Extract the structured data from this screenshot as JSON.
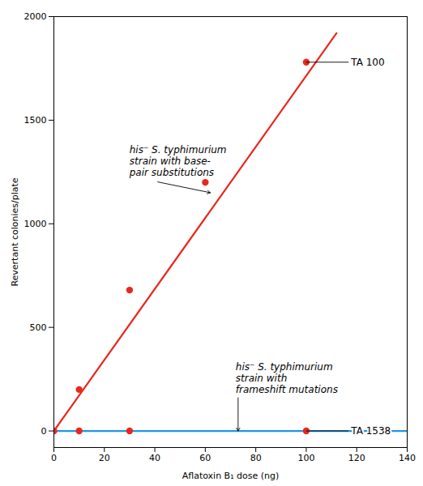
{
  "chart_data": {
    "type": "scatter",
    "xlabel": "Aflatoxin B₁ dose (ng)",
    "ylabel": "Revertant colonies/plate",
    "xlim": [
      0,
      140
    ],
    "ylim": [
      -80,
      2000
    ],
    "xticks": [
      0,
      20,
      40,
      60,
      80,
      100,
      120,
      140
    ],
    "yticks": [
      0,
      500,
      1000,
      1500,
      2000
    ],
    "grid": false,
    "series": [
      {
        "name": "TA 100",
        "color": "#e8281e",
        "x": [
          0,
          10,
          30,
          60,
          100
        ],
        "values": [
          0,
          200,
          680,
          1200,
          1780
        ],
        "fit": {
          "x": [
            0,
            112
          ],
          "y": [
            0,
            1920
          ],
          "color": "#e8281e"
        }
      },
      {
        "name": "TA 1538",
        "color": "#e8281e",
        "x": [
          10,
          30,
          100
        ],
        "values": [
          0,
          0,
          0
        ],
        "fit": {
          "x": [
            0,
            140
          ],
          "y": [
            0,
            0
          ],
          "color": "#2196e8"
        }
      }
    ],
    "annotations": [
      {
        "text": "his⁻ S. typhimurium\nstrain with base-\npair substitutions",
        "x": 62,
        "y": 1150
      },
      {
        "text": "his⁻ S. typhimurium\nstrain with\nframeshift mutations",
        "x": 73,
        "y": 0
      }
    ]
  }
}
